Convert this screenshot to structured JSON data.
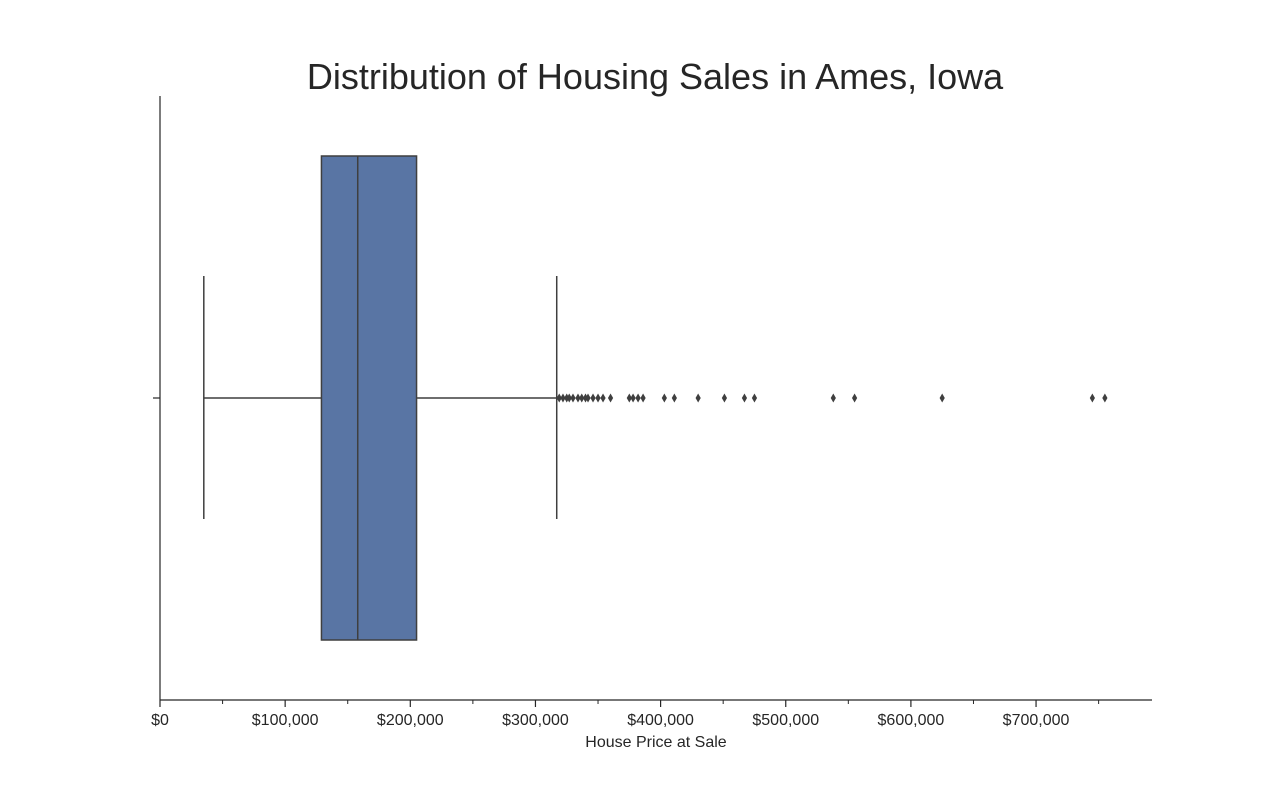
{
  "chart_data": {
    "type": "box",
    "title": "Distribution of Housing Sales in Ames, Iowa",
    "xlabel": "House Price at Sale",
    "ylabel": "",
    "orientation": "horizontal",
    "xlim": [
      0,
      790000
    ],
    "xticks": [
      0,
      100000,
      200000,
      300000,
      400000,
      500000,
      600000,
      700000
    ],
    "xtick_labels": [
      "$0",
      "$100,000",
      "$200,000",
      "$300,000",
      "$400,000",
      "$500,000",
      "$600,000",
      "$700,000"
    ],
    "minor_xticks": [
      50000,
      150000,
      250000,
      350000,
      450000,
      550000,
      650000,
      750000
    ],
    "grid": false,
    "box": {
      "whisker_low": 35000,
      "q1": 129000,
      "median": 158000,
      "q3": 205000,
      "whisker_high": 317000,
      "fill": "#5975a4",
      "edge": "#3f3f3f"
    },
    "outliers": [
      319000,
      322000,
      325000,
      327000,
      330000,
      334000,
      337000,
      340000,
      342000,
      346000,
      350000,
      354000,
      360000,
      375000,
      378000,
      382000,
      386000,
      403000,
      411000,
      430000,
      451000,
      467000,
      475000,
      538000,
      555000,
      625000,
      745000,
      755000
    ]
  }
}
